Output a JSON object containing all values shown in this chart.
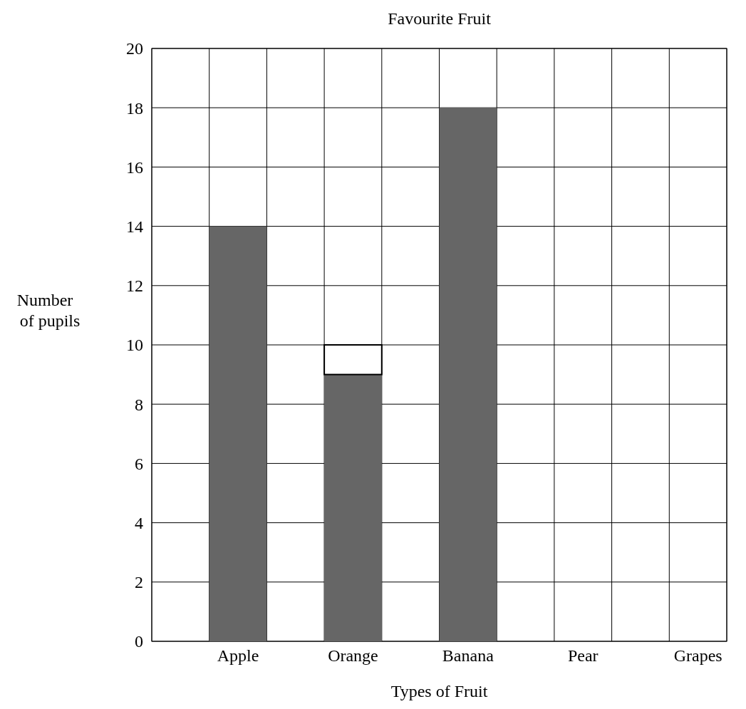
{
  "chart_data": {
    "type": "bar",
    "title": "Favourite Fruit",
    "xlabel": "Types of Fruit",
    "ylabel": "Number of pupils",
    "categories": [
      "Apple",
      "Orange",
      "Banana",
      "Pear",
      "Grapes"
    ],
    "stacked": true,
    "series": [
      {
        "color": "#666666",
        "values": [
          14,
          9,
          18,
          0,
          0
        ]
      },
      {
        "color": "#ffffff",
        "values": [
          0,
          1,
          0,
          0,
          0
        ]
      }
    ],
    "ylim": [
      0,
      20
    ],
    "yticks": [
      0,
      2,
      4,
      6,
      8,
      10,
      12,
      14,
      16,
      18,
      20
    ],
    "grid": true
  }
}
